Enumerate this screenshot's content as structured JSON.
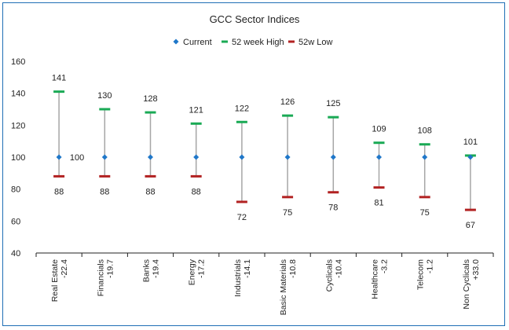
{
  "chart_data": {
    "type": "line",
    "title": "GCC Sector Indices",
    "xlabel": "",
    "ylabel": "",
    "ylim": [
      40,
      160
    ],
    "yticks": [
      40,
      60,
      80,
      100,
      120,
      140,
      160
    ],
    "grid": false,
    "legend_position": "top",
    "categories": [
      [
        "Real Estate",
        "-22.4"
      ],
      [
        "Financials",
        "-19.7"
      ],
      [
        "Banks",
        "-19.4"
      ],
      [
        "Energy",
        "-17.2"
      ],
      [
        "Industrials",
        "-14.1"
      ],
      [
        "Basic Materials",
        "-10.8"
      ],
      [
        "Cyclicals",
        "-10.4"
      ],
      [
        "Healthcare",
        "-3.2"
      ],
      [
        "Telecom",
        "-1.2"
      ],
      [
        "Non Cyclicals",
        "+33.0"
      ]
    ],
    "series": [
      {
        "name": "Current",
        "values": [
          100,
          100,
          100,
          100,
          100,
          100,
          100,
          100,
          100,
          100
        ],
        "marker": "diamond",
        "color": "#1f77c9"
      },
      {
        "name": "52 week High",
        "values": [
          141,
          130,
          128,
          121,
          122,
          126,
          125,
          109,
          108,
          101
        ],
        "marker": "dash",
        "color": "#1aaa55"
      },
      {
        "name": "52w Low",
        "values": [
          88,
          88,
          88,
          88,
          72,
          75,
          78,
          81,
          75,
          67
        ],
        "marker": "dash",
        "color": "#b22222"
      }
    ],
    "data_labels": {
      "current": [
        "100",
        "",
        "",
        "",
        "",
        "",
        "",
        "",
        "",
        ""
      ],
      "high": [
        "141",
        "130",
        "128",
        "121",
        "122",
        "126",
        "125",
        "109",
        "108",
        "101"
      ],
      "low": [
        "88",
        "88",
        "88",
        "88",
        "72",
        "75",
        "78",
        "81",
        "75",
        "67"
      ]
    }
  },
  "colors": {
    "frame": "#1f6fb5",
    "range_line": "#a6a6a6",
    "axis": "#222222"
  }
}
